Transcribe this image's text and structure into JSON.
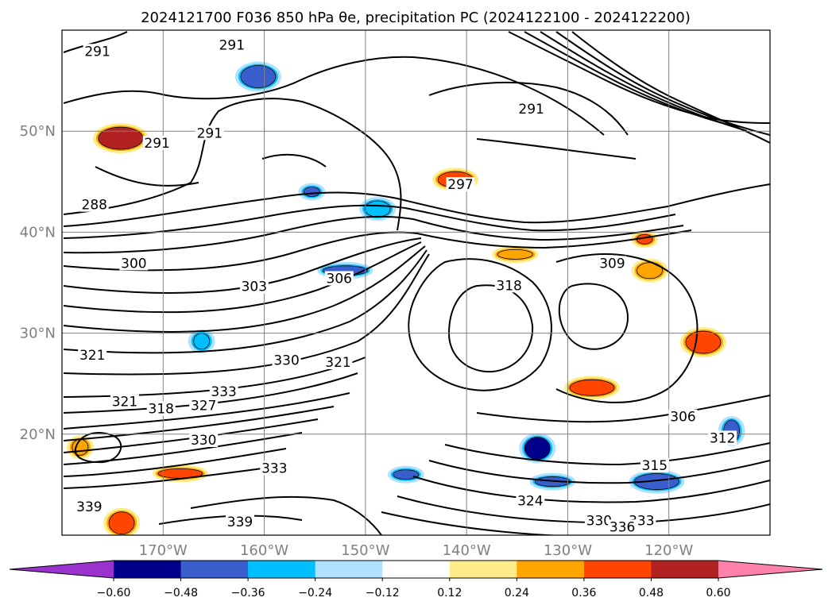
{
  "chart_data": {
    "type": "map",
    "title": "2024121700 F036 850 hPa θe, precipitation PC (2024122100 - 2024122200)",
    "extent": {
      "lon": [
        -180,
        -110
      ],
      "lat": [
        10,
        60
      ]
    },
    "lat_labels": [
      "20°N",
      "30°N",
      "40°N",
      "50°N"
    ],
    "lat_values": [
      20,
      30,
      40,
      50
    ],
    "lon_labels": [
      "170°W",
      "160°W",
      "150°W",
      "140°W",
      "130°W",
      "120°W"
    ],
    "lon_values": [
      -170,
      -160,
      -150,
      -140,
      -130,
      -120
    ],
    "grid": true,
    "colorbar": {
      "orientation": "horizontal",
      "extend": "both",
      "colors": [
        "#9a32cd",
        "#00008b",
        "#3a5fcd",
        "#00bfff",
        "#b0e2ff",
        "#ffffff",
        "#ffec8b",
        "#ffa500",
        "#ff4500",
        "#b22222",
        "#ff82ab"
      ],
      "tick_labels": [
        "−0.60",
        "−0.48",
        "−0.36",
        "−0.24",
        "−0.12",
        "0.12",
        "0.24",
        "0.36",
        "0.48",
        "0.60"
      ]
    },
    "contour_labels": [
      {
        "text": "291",
        "lon": -176.5,
        "lat": 57.7
      },
      {
        "text": "291",
        "lon": -163.2,
        "lat": 58.3
      },
      {
        "text": "291",
        "lon": -170.6,
        "lat": 48.6
      },
      {
        "text": "291",
        "lon": -165.4,
        "lat": 49.6
      },
      {
        "text": "288",
        "lon": -176.8,
        "lat": 42.5
      },
      {
        "text": "300",
        "lon": -172.9,
        "lat": 36.7
      },
      {
        "text": "303",
        "lon": -161.0,
        "lat": 34.4
      },
      {
        "text": "306",
        "lon": -152.6,
        "lat": 35.2
      },
      {
        "text": "297",
        "lon": -140.6,
        "lat": 44.5
      },
      {
        "text": "291",
        "lon": -133.6,
        "lat": 52.0
      },
      {
        "text": "309",
        "lon": -125.6,
        "lat": 36.7
      },
      {
        "text": "318",
        "lon": -135.8,
        "lat": 34.5
      },
      {
        "text": "330",
        "lon": -157.8,
        "lat": 27.1
      },
      {
        "text": "321",
        "lon": -152.7,
        "lat": 26.9
      },
      {
        "text": "333",
        "lon": -164.0,
        "lat": 24.0
      },
      {
        "text": "327",
        "lon": -166.0,
        "lat": 22.6
      },
      {
        "text": "321",
        "lon": -173.8,
        "lat": 23.0
      },
      {
        "text": "318",
        "lon": -170.2,
        "lat": 22.3
      },
      {
        "text": "321",
        "lon": -177.0,
        "lat": 27.6
      },
      {
        "text": "306",
        "lon": -118.6,
        "lat": 21.5
      },
      {
        "text": "312",
        "lon": -114.7,
        "lat": 19.4
      },
      {
        "text": "315",
        "lon": -121.4,
        "lat": 16.7
      },
      {
        "text": "324",
        "lon": -133.7,
        "lat": 13.2
      },
      {
        "text": "333",
        "lon": -159.0,
        "lat": 16.4
      },
      {
        "text": "330",
        "lon": -166.0,
        "lat": 19.2
      },
      {
        "text": "339",
        "lon": -177.3,
        "lat": 12.6
      },
      {
        "text": "339",
        "lon": -162.4,
        "lat": 11.1
      },
      {
        "text": "330",
        "lon": -126.9,
        "lat": 11.2
      },
      {
        "text": "333",
        "lon": -122.7,
        "lat": 11.2
      },
      {
        "text": "336",
        "lon": -124.6,
        "lat": 10.6
      }
    ],
    "precip_features": [
      {
        "lon": -155.3,
        "lat": 44.0,
        "value": -0.4
      },
      {
        "lon": -148.8,
        "lat": 42.3,
        "value": -0.3
      },
      {
        "lon": -160.6,
        "lat": 55.4,
        "value": -0.45
      },
      {
        "lon": -152.0,
        "lat": 36.2,
        "value": -0.4
      },
      {
        "lon": -166.2,
        "lat": 29.2,
        "value": -0.35
      },
      {
        "lon": -133.0,
        "lat": 18.6,
        "value": -0.55
      },
      {
        "lon": -131.5,
        "lat": 15.3,
        "value": -0.4
      },
      {
        "lon": -121.2,
        "lat": 15.3,
        "value": -0.45
      },
      {
        "lon": -113.8,
        "lat": 20.3,
        "value": -0.45
      },
      {
        "lon": -146.0,
        "lat": 16.0,
        "value": -0.4
      },
      {
        "lon": -141.1,
        "lat": 45.2,
        "value": 0.4
      },
      {
        "lon": -174.2,
        "lat": 49.3,
        "value": 0.5
      },
      {
        "lon": -122.4,
        "lat": 39.3,
        "value": 0.4
      },
      {
        "lon": -121.9,
        "lat": 36.2,
        "value": 0.35
      },
      {
        "lon": -116.6,
        "lat": 29.1,
        "value": 0.4
      },
      {
        "lon": -168.3,
        "lat": 16.1,
        "value": 0.45
      },
      {
        "lon": -178.2,
        "lat": 18.7,
        "value": 0.35
      },
      {
        "lon": -174.1,
        "lat": 11.2,
        "value": 0.4
      },
      {
        "lon": -135.2,
        "lat": 37.8,
        "value": 0.35
      },
      {
        "lon": -127.6,
        "lat": 24.6,
        "value": 0.4
      }
    ]
  }
}
